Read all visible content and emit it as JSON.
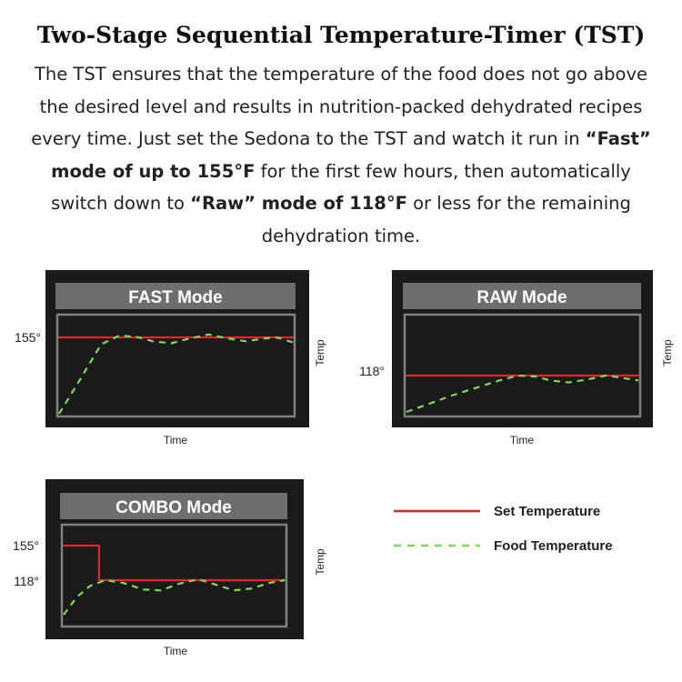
{
  "title": "Two-Stage Sequential Temperature-Timer (TST)",
  "description": {
    "p1": "The TST ensures that the temperature of the food does not go above the desired level and results in nutrition-packed dehydrated recipes every time. Just set the Sedona to the TST and watch it run in ",
    "b1": "“Fast” mode of up to 155°F",
    "p2": " for the first few hours, then automatically switch down to ",
    "b2": "“Raw” mode of 118°F",
    "p3": " or less for the remaining dehydration time."
  },
  "colors": {
    "set_temperature": "#e0262b",
    "food_temperature": "#7ed957",
    "panel": "#1a1a1a",
    "header": "#6e6e6e",
    "frame": "#808080"
  },
  "legend": [
    {
      "label": "Set Temperature",
      "style": "solid",
      "color": "#e0262b"
    },
    {
      "label": "Food Temperature",
      "style": "dashed",
      "color": "#7ed957"
    }
  ],
  "chart_data": [
    {
      "type": "line",
      "title": "FAST Mode",
      "xlabel": "Time",
      "ylabel": "Temp",
      "y_ticks": [
        "155°"
      ],
      "grid": false,
      "series": [
        {
          "name": "Set Temperature",
          "style": "solid",
          "points": [
            [
              0,
              155
            ],
            [
              100,
              155
            ]
          ]
        },
        {
          "name": "Food Temperature",
          "style": "dashed",
          "points": [
            [
              0,
              77
            ],
            [
              9,
              112
            ],
            [
              18,
              148
            ],
            [
              26,
              157
            ],
            [
              34,
              155
            ],
            [
              40,
              151
            ],
            [
              48,
              149
            ],
            [
              56,
              154
            ],
            [
              64,
              158
            ],
            [
              72,
              154
            ],
            [
              80,
              151
            ],
            [
              88,
              154
            ],
            [
              93,
              155
            ],
            [
              100,
              150
            ]
          ]
        }
      ]
    },
    {
      "type": "line",
      "title": "RAW Mode",
      "xlabel": "Time",
      "ylabel": "Temp",
      "y_ticks": [
        "118°"
      ],
      "grid": false,
      "series": [
        {
          "name": "Set Temperature",
          "style": "solid",
          "points": [
            [
              0,
              118
            ],
            [
              100,
              118
            ]
          ]
        },
        {
          "name": "Food Temperature",
          "style": "dashed",
          "points": [
            [
              0,
              81
            ],
            [
              20,
              98
            ],
            [
              40,
              113
            ],
            [
              48,
              118
            ],
            [
              56,
              117
            ],
            [
              62,
              113
            ],
            [
              70,
              111
            ],
            [
              78,
              114
            ],
            [
              86,
              118
            ],
            [
              92,
              116
            ],
            [
              100,
              113
            ]
          ]
        }
      ]
    },
    {
      "type": "line",
      "title": "COMBO Mode",
      "xlabel": "Time",
      "ylabel": "Temp",
      "y_ticks": [
        "155°",
        "118°"
      ],
      "grid": false,
      "series": [
        {
          "name": "Set Temperature",
          "style": "solid",
          "points": [
            [
              0,
              155
            ],
            [
              16,
              155
            ],
            [
              16,
              118
            ],
            [
              100,
              118
            ]
          ]
        },
        {
          "name": "Food Temperature",
          "style": "dashed",
          "points": [
            [
              0,
              81
            ],
            [
              6,
              100
            ],
            [
              12,
              112
            ],
            [
              19,
              118
            ],
            [
              27,
              115
            ],
            [
              36,
              108
            ],
            [
              44,
              107
            ],
            [
              52,
              114
            ],
            [
              61,
              119
            ],
            [
              69,
              113
            ],
            [
              77,
              107
            ],
            [
              85,
              109
            ],
            [
              93,
              115
            ],
            [
              100,
              118
            ]
          ]
        }
      ]
    }
  ]
}
